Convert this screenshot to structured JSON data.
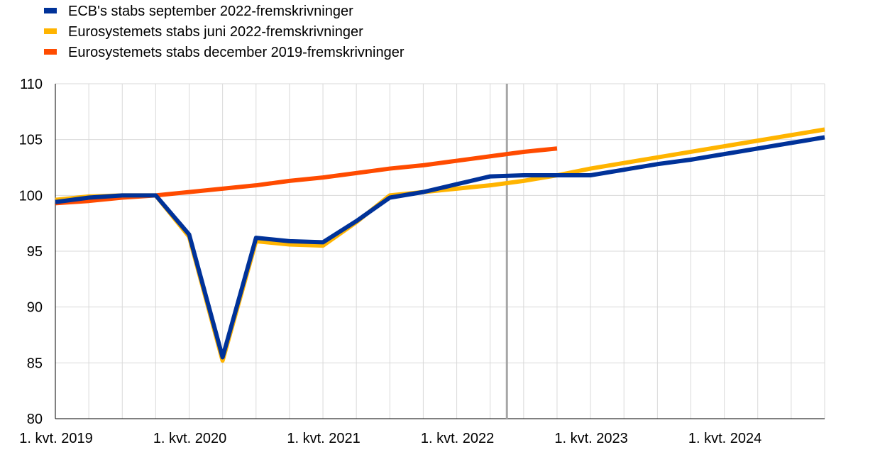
{
  "chart_data": {
    "type": "line",
    "title": "",
    "xlabel": "",
    "ylabel": "",
    "ylim": [
      80,
      110
    ],
    "y_ticks": [
      80,
      85,
      90,
      95,
      100,
      105,
      110
    ],
    "x_ticks": [
      {
        "label": "1. kvt. 2019",
        "index": 0
      },
      {
        "label": "1. kvt. 2020",
        "index": 4
      },
      {
        "label": "1. kvt. 2021",
        "index": 8
      },
      {
        "label": "1. kvt. 2022",
        "index": 12
      },
      {
        "label": "1. kvt. 2023",
        "index": 16
      },
      {
        "label": "1. kvt. 2024",
        "index": 20
      }
    ],
    "x_count": 24,
    "grid": true,
    "legend_position": "top-left",
    "projection_start_index": 13.5,
    "projection_line_color": "#a6a6a6",
    "series": [
      {
        "name": "ECB's stabs september 2022-fremskrivninger",
        "color": "#003299",
        "values": [
          99.4,
          99.8,
          100.0,
          100.0,
          96.5,
          85.5,
          96.2,
          95.9,
          95.8,
          97.7,
          99.8,
          100.3,
          101.0,
          101.7,
          101.8,
          101.8,
          101.8,
          102.3,
          102.8,
          103.2,
          103.7,
          104.2,
          104.7,
          105.2
        ]
      },
      {
        "name": "Eurosystemets stabs juni 2022-fremskrivninger",
        "color": "#ffb400",
        "values": [
          99.6,
          99.9,
          100.0,
          100.0,
          96.3,
          85.2,
          95.9,
          95.6,
          95.5,
          97.6,
          100.0,
          100.3,
          100.6,
          100.9,
          101.3,
          101.8,
          102.4,
          102.9,
          103.4,
          103.9,
          104.4,
          104.9,
          105.4,
          105.9
        ]
      },
      {
        "name": "Eurosystemets stabs december 2019-fremskrivninger",
        "color": "#ff4b00",
        "values": [
          99.3,
          99.5,
          99.8,
          100.0,
          100.3,
          100.6,
          100.9,
          101.3,
          101.6,
          102.0,
          102.4,
          102.7,
          103.1,
          103.5,
          103.9,
          104.2
        ]
      }
    ]
  }
}
